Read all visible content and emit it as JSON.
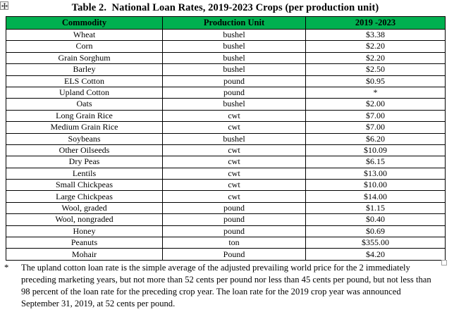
{
  "page": {
    "title": "Table 2.  National Loan Rates, 2019-2023 Crops (per production unit)"
  },
  "colors": {
    "header_bg": "#00B050",
    "border": "#000000"
  },
  "icons": {
    "table_move_handle": "four-way-arrow-icon",
    "anchor_square": "empty-square-icon"
  },
  "table": {
    "headers": [
      "Commodity",
      "Production Unit",
      "2019 -2023"
    ],
    "rows": [
      [
        "Wheat",
        "bushel",
        "$3.38"
      ],
      [
        "Corn",
        "bushel",
        "$2.20"
      ],
      [
        "Grain Sorghum",
        "bushel",
        "$2.20"
      ],
      [
        "Barley",
        "bushel",
        "$2.50"
      ],
      [
        "ELS Cotton",
        "pound",
        "$0.95"
      ],
      [
        "Upland Cotton",
        "pound",
        "*"
      ],
      [
        "Oats",
        "bushel",
        "$2.00"
      ],
      [
        "Long Grain Rice",
        "cwt",
        "$7.00"
      ],
      [
        "Medium Grain Rice",
        "cwt",
        "$7.00"
      ],
      [
        "Soybeans",
        "bushel",
        "$6.20"
      ],
      [
        "Other Oilseeds",
        "cwt",
        "$10.09"
      ],
      [
        "Dry Peas",
        "cwt",
        "$6.15"
      ],
      [
        "Lentils",
        "cwt",
        "$13.00"
      ],
      [
        "Small Chickpeas",
        "cwt",
        "$10.00"
      ],
      [
        "Large Chickpeas",
        "cwt",
        "$14.00"
      ],
      [
        "Wool, graded",
        "pound",
        "$1.15"
      ],
      [
        "Wool, nongraded",
        "pound",
        "$0.40"
      ],
      [
        "Honey",
        "pound",
        "$0.69"
      ],
      [
        "Peanuts",
        "ton",
        "$355.00"
      ],
      [
        "Mohair",
        "Pound",
        "$4.20"
      ]
    ]
  },
  "footnote": {
    "marker": "*",
    "text": "The upland cotton loan rate is the simple average of the adjusted prevailing world price for the 2 immediately preceding marketing years, but not more than 52 cents per pound nor less than 45 cents per pound, but not less than 98 percent of the loan rate for the preceding crop year. The loan rate for the 2019 crop year was announced September 31, 2019, at 52 cents per pound."
  }
}
